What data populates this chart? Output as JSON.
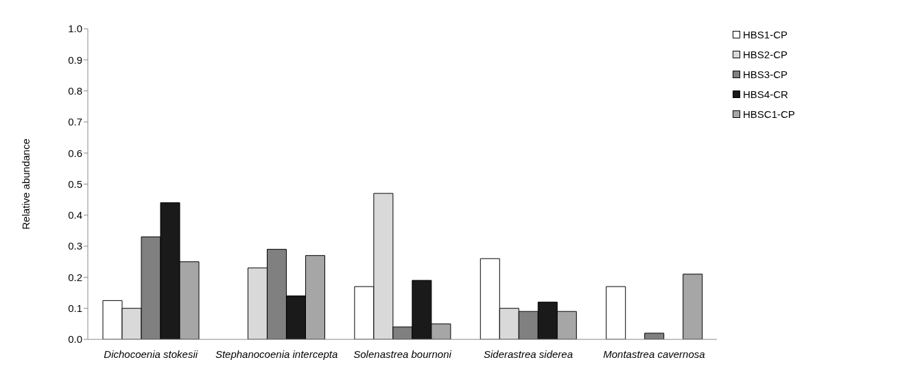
{
  "chart_data": {
    "type": "bar",
    "ylabel": "Relative abundance",
    "categories": [
      "Dichocoenia stokesii",
      "Stephanocoenia intercepta",
      "Solenastrea bournoni",
      "Siderastrea siderea",
      "Montastrea cavernosa"
    ],
    "series": [
      {
        "name": "HBS1-CP",
        "color": "#ffffff",
        "values": [
          0.125,
          0,
          0.17,
          0.26,
          0.17
        ]
      },
      {
        "name": "HBS2-CP",
        "color": "#d9d9d9",
        "values": [
          0.1,
          0.23,
          0.47,
          0.1,
          0
        ]
      },
      {
        "name": "HBS3-CP",
        "color": "#808080",
        "values": [
          0.33,
          0.29,
          0.04,
          0.09,
          0.02
        ]
      },
      {
        "name": "HBS4-CR",
        "color": "#1a1a1a",
        "values": [
          0.44,
          0.14,
          0.19,
          0.12,
          0
        ]
      },
      {
        "name": "HBSC1-CP",
        "color": "#a6a6a6",
        "values": [
          0.25,
          0.27,
          0.05,
          0.09,
          0.21
        ]
      }
    ],
    "ylim": [
      0,
      1
    ],
    "yticks": [
      {
        "value": 0,
        "label": "0.0"
      },
      {
        "value": 0.1,
        "label": "0.1"
      },
      {
        "value": 0.2,
        "label": "0.2"
      },
      {
        "value": 0.3,
        "label": "0.3"
      },
      {
        "value": 0.4,
        "label": "0.4"
      },
      {
        "value": 0.5,
        "label": "0.5"
      },
      {
        "value": 0.6,
        "label": "0.6"
      },
      {
        "value": 0.7,
        "label": "0.7"
      },
      {
        "value": 0.8,
        "label": "0.8"
      },
      {
        "value": 0.9,
        "label": "0.9"
      },
      {
        "value": 1,
        "label": "1.0"
      }
    ],
    "grid": false,
    "legend": "top right"
  }
}
